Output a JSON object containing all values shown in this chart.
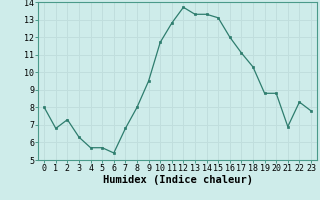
{
  "x": [
    0,
    1,
    2,
    3,
    4,
    5,
    6,
    7,
    8,
    9,
    10,
    11,
    12,
    13,
    14,
    15,
    16,
    17,
    18,
    19,
    20,
    21,
    22,
    23
  ],
  "y": [
    8.0,
    6.8,
    7.3,
    6.3,
    5.7,
    5.7,
    5.4,
    6.8,
    8.0,
    9.5,
    11.7,
    12.8,
    13.7,
    13.3,
    13.3,
    13.1,
    12.0,
    11.1,
    10.3,
    8.8,
    8.8,
    6.9,
    8.3,
    7.8
  ],
  "xlabel": "Humidex (Indice chaleur)",
  "xlim": [
    -0.5,
    23.5
  ],
  "ylim": [
    5,
    14
  ],
  "yticks": [
    5,
    6,
    7,
    8,
    9,
    10,
    11,
    12,
    13,
    14
  ],
  "xticks": [
    0,
    1,
    2,
    3,
    4,
    5,
    6,
    7,
    8,
    9,
    10,
    11,
    12,
    13,
    14,
    15,
    16,
    17,
    18,
    19,
    20,
    21,
    22,
    23
  ],
  "line_color": "#2e7d6e",
  "marker": "s",
  "marker_size": 2.0,
  "bg_color": "#ceecea",
  "grid_color": "#c0dedd",
  "tick_label_fontsize": 6.0,
  "xlabel_fontsize": 7.5,
  "linewidth": 0.9
}
